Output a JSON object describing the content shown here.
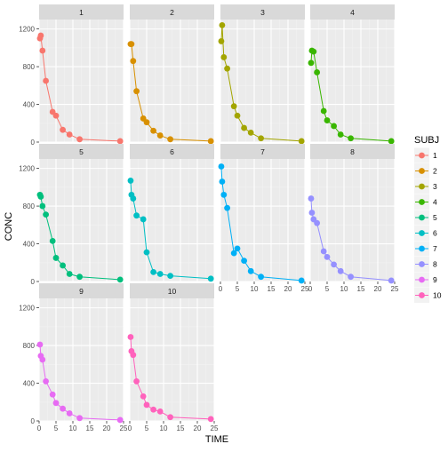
{
  "chart_data": {
    "type": "line",
    "facet_by": "SUBJ",
    "facet_layout": {
      "ncol": 4,
      "nrow": 3
    },
    "xlabel": "TIME",
    "ylabel": "CONC",
    "xlim": [
      0,
      25
    ],
    "ylim": [
      0,
      1300
    ],
    "x_ticks": [
      0,
      5,
      10,
      15,
      20,
      25
    ],
    "y_ticks": [
      0,
      400,
      800,
      1200
    ],
    "legend": {
      "title": "SUBJ",
      "position": "right"
    },
    "grid": true,
    "times": [
      0.25,
      0.5,
      1,
      2,
      4,
      5,
      7,
      9,
      12,
      24
    ],
    "series": [
      {
        "name": "1",
        "color": "#F8766D",
        "values": [
          1100,
          1130,
          970,
          650,
          320,
          280,
          130,
          80,
          30,
          10
        ]
      },
      {
        "name": "2",
        "color": "#D89000",
        "values": [
          1040,
          1040,
          860,
          540,
          250,
          210,
          120,
          70,
          30,
          10
        ]
      },
      {
        "name": "3",
        "color": "#A3A500",
        "values": [
          1070,
          1240,
          900,
          780,
          380,
          280,
          150,
          100,
          40,
          10
        ]
      },
      {
        "name": "4",
        "color": "#39B600",
        "values": [
          840,
          970,
          960,
          740,
          330,
          230,
          170,
          80,
          40,
          10
        ]
      },
      {
        "name": "5",
        "color": "#00BF7D",
        "values": [
          920,
          900,
          800,
          710,
          430,
          250,
          170,
          80,
          50,
          20
        ]
      },
      {
        "name": "6",
        "color": "#00BFC4",
        "values": [
          1070,
          920,
          880,
          700,
          660,
          310,
          100,
          80,
          60,
          30
        ]
      },
      {
        "name": "7",
        "color": "#00B0F6",
        "values": [
          1220,
          1060,
          920,
          780,
          300,
          350,
          220,
          110,
          50,
          10
        ]
      },
      {
        "name": "8",
        "color": "#9590FF",
        "values": [
          880,
          730,
          660,
          620,
          320,
          260,
          180,
          110,
          50,
          10
        ]
      },
      {
        "name": "9",
        "color": "#E76BF3",
        "values": [
          810,
          690,
          650,
          420,
          280,
          190,
          130,
          80,
          30,
          10
        ]
      },
      {
        "name": "10",
        "color": "#FF62BC",
        "values": [
          890,
          740,
          700,
          420,
          260,
          170,
          120,
          100,
          40,
          20
        ]
      }
    ]
  }
}
